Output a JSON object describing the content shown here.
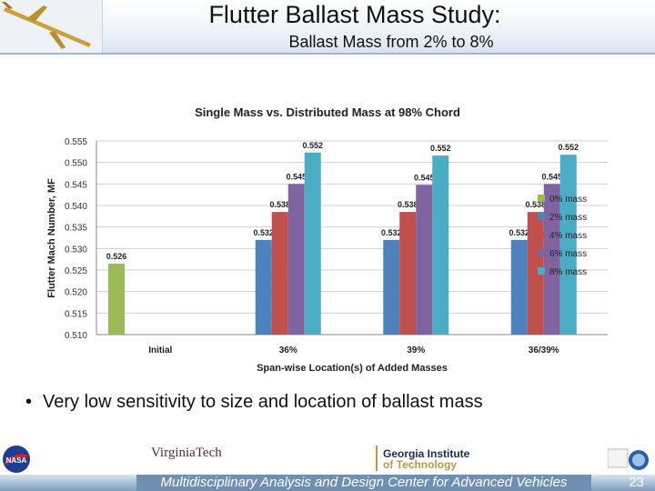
{
  "slide": {
    "title": "Flutter Ballast Mass Study:",
    "subtitle": "Ballast Mass from 2% to 8%",
    "bullet": "Very low sensitivity to size and location of ballast mass",
    "footer": "Multidisciplinary Analysis and Design Center for Advanced Vehicles",
    "page_number": "23",
    "logos": {
      "top_left": "aircraft-icon",
      "nasa": "nasa-logo",
      "virginia_tech": "VirginiaTech",
      "georgia_tech_line1": "Georgia Institute",
      "georgia_tech_line2": "of Technology",
      "right": "seal-logo"
    }
  },
  "chart_data": {
    "type": "bar",
    "title": "Single Mass vs. Distributed Mass at 98% Chord",
    "xlabel": "Span-wise Location(s) of Added Masses",
    "ylabel": "Flutter Mach Number, MF",
    "ylim": [
      0.51,
      0.555
    ],
    "yticks": [
      "0.510",
      "0.515",
      "0.520",
      "0.525",
      "0.530",
      "0.535",
      "0.540",
      "0.545",
      "0.550",
      "0.555"
    ],
    "grid": true,
    "legend_position": "right",
    "categories": [
      "Initial",
      "36%",
      "39%",
      "36/39%"
    ],
    "series": [
      {
        "name": "0% mass",
        "color": "#9bbb59",
        "values": [
          0.5265,
          null,
          null,
          null
        ],
        "labels": [
          "0.526",
          "",
          "",
          ""
        ]
      },
      {
        "name": "2% mass",
        "color": "#4f81bd",
        "values": [
          null,
          0.532,
          0.532,
          0.532
        ],
        "labels": [
          "",
          "0.532",
          "0.532",
          "0.532"
        ]
      },
      {
        "name": "4% mass",
        "color": "#c0504d",
        "values": [
          null,
          0.5385,
          0.5385,
          0.5385
        ],
        "labels": [
          "",
          "0.538",
          "0.538",
          "0.538"
        ]
      },
      {
        "name": "6% mass",
        "color": "#8064a2",
        "values": [
          null,
          0.545,
          0.5448,
          0.545
        ],
        "labels": [
          "",
          "0.545",
          "0.545",
          "0.545"
        ]
      },
      {
        "name": "8% mass",
        "color": "#4bacc6",
        "values": [
          null,
          0.5523,
          0.5516,
          0.5518
        ],
        "labels": [
          "",
          "0.552",
          "0.552",
          "0.552"
        ]
      }
    ]
  }
}
